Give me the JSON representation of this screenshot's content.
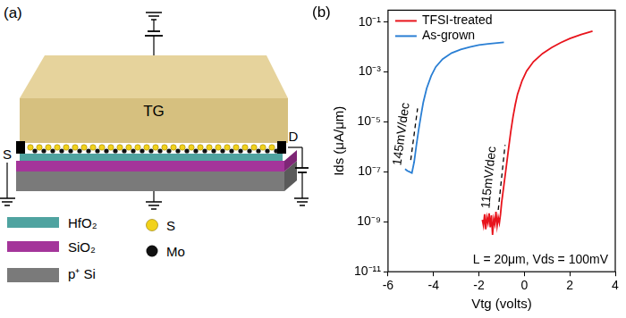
{
  "panel_a": {
    "panel_label": "(a)",
    "gate": "TG",
    "source": "S",
    "drain": "D",
    "legend": [
      {
        "label": "HfO₂",
        "color": "#4fa3a0"
      },
      {
        "label": "SiO₂",
        "color": "#a4359a"
      },
      {
        "label": "p⁺ Si",
        "color": "#7a7a7a"
      },
      {
        "label": "S",
        "color": "#f2d21b",
        "marker": "circle"
      },
      {
        "label": "Mo",
        "color": "#111111",
        "marker": "circle"
      }
    ]
  },
  "chart_data": {
    "type": "line",
    "panel_label": "(b)",
    "x_label": "Vtg (volts)",
    "y_label": "Ids (μA/μm)",
    "log": "y",
    "grid": false,
    "legend": "upper left",
    "xlim": [
      -6,
      4
    ],
    "xticks": [
      -6,
      -4,
      -2,
      0,
      2,
      4
    ],
    "ylim": [
      1e-11,
      0.3
    ],
    "yticks": [
      {
        "value": 1e-11,
        "label": "10⁻¹¹"
      },
      {
        "value": 1e-09,
        "label": "10⁻⁹"
      },
      {
        "value": 1e-07,
        "label": "10⁻⁷"
      },
      {
        "value": 1e-05,
        "label": "10⁻⁵"
      },
      {
        "value": 0.001,
        "label": "10⁻³"
      },
      {
        "value": 0.1,
        "label": "10⁻¹"
      }
    ],
    "series": [
      {
        "name": "TFSI-treated",
        "color": "#e8141c",
        "x": [
          -1.85,
          -1.8,
          -1.75,
          -1.7,
          -1.65,
          -1.6,
          -1.55,
          -1.5,
          -1.45,
          -1.4,
          -1.35,
          -1.3,
          -1.25,
          -1.2,
          -1.15,
          -1.1,
          -1.05,
          -1.0,
          -0.9,
          -0.8,
          -0.7,
          -0.6,
          -0.5,
          -0.4,
          -0.3,
          -0.1,
          0.1,
          0.4,
          0.8,
          1.2,
          1.6,
          2.0,
          2.5,
          3.0
        ],
        "values": [
          1.2e-09,
          7e-10,
          2e-09,
          5e-10,
          1.5e-09,
          9e-10,
          2.2e-09,
          6e-10,
          1.8e-09,
          3e-10,
          1.3e-09,
          8e-10,
          2.5e-09,
          7e-10,
          1.5e-09,
          9e-10,
          2e-09,
          6e-09,
          3e-08,
          1.5e-07,
          8e-07,
          4e-06,
          1.6e-05,
          5e-05,
          0.00013,
          0.00045,
          0.0011,
          0.0026,
          0.0055,
          0.0095,
          0.015,
          0.022,
          0.032,
          0.043
        ]
      },
      {
        "name": "As-grown",
        "color": "#2a7fd4",
        "x": [
          -5.25,
          -5.15,
          -5.05,
          -4.95,
          -4.85,
          -4.75,
          -4.65,
          -4.55,
          -4.45,
          -4.3,
          -4.1,
          -3.9,
          -3.6,
          -3.2,
          -2.8,
          -2.4,
          -2.0,
          -1.6,
          -1.2,
          -0.9
        ],
        "values": [
          1.3e-07,
          1.1e-07,
          1e-07,
          9e-08,
          2.5e-07,
          1.2e-06,
          5e-06,
          1.8e-05,
          6e-05,
          0.00022,
          0.0007,
          0.0016,
          0.0033,
          0.0058,
          0.008,
          0.01,
          0.012,
          0.0135,
          0.0145,
          0.0155
        ]
      }
    ],
    "annotations": [
      {
        "text": "145mV/dec",
        "x": [
          -5.0,
          -4.7
        ],
        "y": [
          3e-07,
          3.5e-05
        ],
        "line_style": "dashed"
      },
      {
        "text": "115mV/dec",
        "x": [
          -1.15,
          -0.85
        ],
        "y": [
          3e-09,
          1.2e-06
        ],
        "line_style": "dashed"
      }
    ],
    "note": "L = 20μm, Vds = 100mV"
  }
}
